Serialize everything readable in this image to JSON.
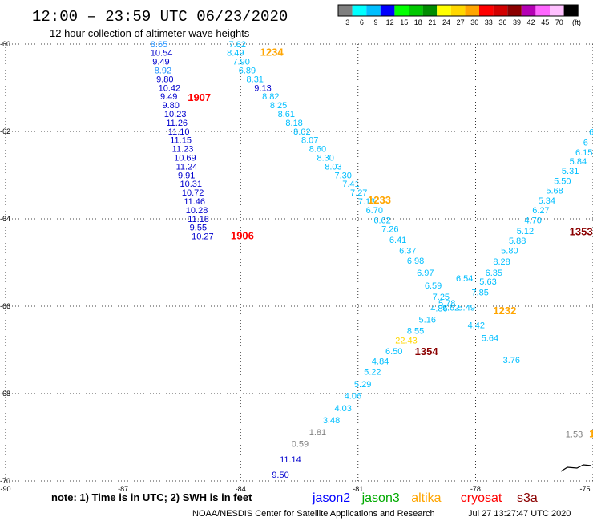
{
  "header": {
    "title": "12:00 – 23:59 UTC 06/23/2020",
    "subtitle": "12 hour collection of altimeter wave heights"
  },
  "legend": {
    "unit": "(ft)",
    "bins": [
      {
        "color": "#7f7f7f",
        "label": "3"
      },
      {
        "color": "#00ffff",
        "label": "6"
      },
      {
        "color": "#00bfff",
        "label": "9"
      },
      {
        "color": "#0000ff",
        "label": "12"
      },
      {
        "color": "#00ff00",
        "label": "15"
      },
      {
        "color": "#00c800",
        "label": "18"
      },
      {
        "color": "#008c00",
        "label": "21"
      },
      {
        "color": "#ffff00",
        "label": "24"
      },
      {
        "color": "#ffd700",
        "label": "27"
      },
      {
        "color": "#ffa500",
        "label": "30"
      },
      {
        "color": "#ff0000",
        "label": "33"
      },
      {
        "color": "#d20000",
        "label": "36"
      },
      {
        "color": "#8b0000",
        "label": "39"
      },
      {
        "color": "#b400b4",
        "label": "42"
      },
      {
        "color": "#ff66ff",
        "label": "45"
      },
      {
        "color": "#ffc0ff",
        "label": "70"
      },
      {
        "color": "#000000",
        "label": ""
      }
    ]
  },
  "axes": {
    "lat_ticks": [
      "-60",
      "-62",
      "-64",
      "-66",
      "-68",
      "-70"
    ],
    "lon_ticks": [
      "-90",
      "-87",
      "-84",
      "-81",
      "-78",
      "-75"
    ]
  },
  "chart_data": {
    "type": "scatter",
    "xlabel": "",
    "ylabel": "",
    "xlim": [
      -90,
      -75
    ],
    "ylim": [
      -70,
      -60
    ],
    "grid": true,
    "observations": [
      {
        "lon": -86.3,
        "lat": -60.07,
        "v": "8.65",
        "color": "#1e90ff"
      },
      {
        "lon": -86.3,
        "lat": -60.27,
        "v": "10.54",
        "color": "#0000cd"
      },
      {
        "lon": -86.25,
        "lat": -60.47,
        "v": "9.49",
        "color": "#0000cd"
      },
      {
        "lon": -86.2,
        "lat": -60.67,
        "v": "8.92",
        "color": "#1e90ff"
      },
      {
        "lon": -86.15,
        "lat": -60.87,
        "v": "9.80",
        "color": "#0000cd"
      },
      {
        "lon": -86.1,
        "lat": -61.07,
        "v": "10.42",
        "color": "#0000cd"
      },
      {
        "lon": -86.05,
        "lat": -61.27,
        "v": "9.49",
        "color": "#0000cd"
      },
      {
        "lon": -86.0,
        "lat": -61.47,
        "v": "9.80",
        "color": "#0000cd"
      },
      {
        "lon": -85.95,
        "lat": -61.67,
        "v": "10.23",
        "color": "#0000cd"
      },
      {
        "lon": -85.9,
        "lat": -61.87,
        "v": "11.26",
        "color": "#0000cd"
      },
      {
        "lon": -85.85,
        "lat": -62.07,
        "v": "11.10",
        "color": "#0000cd"
      },
      {
        "lon": -85.8,
        "lat": -62.27,
        "v": "11.15",
        "color": "#0000cd"
      },
      {
        "lon": -85.75,
        "lat": -62.47,
        "v": "11.23",
        "color": "#0000cd"
      },
      {
        "lon": -85.7,
        "lat": -62.67,
        "v": "10.69",
        "color": "#0000cd"
      },
      {
        "lon": -85.65,
        "lat": -62.87,
        "v": "11.24",
        "color": "#0000cd"
      },
      {
        "lon": -85.6,
        "lat": -63.07,
        "v": "9.91",
        "color": "#0000cd"
      },
      {
        "lon": -85.55,
        "lat": -63.27,
        "v": "10.31",
        "color": "#0000cd"
      },
      {
        "lon": -85.5,
        "lat": -63.47,
        "v": "10.72",
        "color": "#0000cd"
      },
      {
        "lon": -85.45,
        "lat": -63.67,
        "v": "11.46",
        "color": "#0000cd"
      },
      {
        "lon": -85.4,
        "lat": -63.87,
        "v": "10.28",
        "color": "#0000cd"
      },
      {
        "lon": -85.35,
        "lat": -64.07,
        "v": "11.18",
        "color": "#0000cd"
      },
      {
        "lon": -85.3,
        "lat": -64.27,
        "v": "9.55",
        "color": "#0000cd"
      },
      {
        "lon": -85.25,
        "lat": -64.47,
        "v": "10.27",
        "color": "#0000cd"
      },
      {
        "lon": -84.3,
        "lat": -60.07,
        "v": "7.82",
        "color": "#00bfff"
      },
      {
        "lon": -84.35,
        "lat": -60.27,
        "v": "8.49",
        "color": "#00bfff"
      },
      {
        "lon": -84.2,
        "lat": -60.47,
        "v": "7.90",
        "color": "#00bfff"
      },
      {
        "lon": -84.05,
        "lat": -60.67,
        "v": "6.89",
        "color": "#00bfff"
      },
      {
        "lon": -83.85,
        "lat": -60.87,
        "v": "8.31",
        "color": "#00bfff"
      },
      {
        "lon": -83.65,
        "lat": -61.07,
        "v": "9.13",
        "color": "#0000cd"
      },
      {
        "lon": -83.45,
        "lat": -61.27,
        "v": "8.82",
        "color": "#00bfff"
      },
      {
        "lon": -83.25,
        "lat": -61.47,
        "v": "8.25",
        "color": "#00bfff"
      },
      {
        "lon": -83.05,
        "lat": -61.67,
        "v": "8.61",
        "color": "#00bfff"
      },
      {
        "lon": -82.85,
        "lat": -61.87,
        "v": "8.18",
        "color": "#00bfff"
      },
      {
        "lon": -82.65,
        "lat": -62.07,
        "v": "8.02",
        "color": "#00bfff"
      },
      {
        "lon": -82.45,
        "lat": -62.27,
        "v": "8.07",
        "color": "#00bfff"
      },
      {
        "lon": -82.25,
        "lat": -62.47,
        "v": "8.60",
        "color": "#00bfff"
      },
      {
        "lon": -82.05,
        "lat": -62.67,
        "v": "8.30",
        "color": "#00bfff"
      },
      {
        "lon": -81.85,
        "lat": -62.87,
        "v": "8.03",
        "color": "#00bfff"
      },
      {
        "lon": -81.6,
        "lat": -63.07,
        "v": "7.30",
        "color": "#00bfff"
      },
      {
        "lon": -81.4,
        "lat": -63.27,
        "v": "7.41",
        "color": "#00bfff"
      },
      {
        "lon": -81.2,
        "lat": -63.47,
        "v": "7.27",
        "color": "#00bfff"
      },
      {
        "lon": -81.0,
        "lat": -63.67,
        "v": "7.13",
        "color": "#00bfff"
      },
      {
        "lon": -80.8,
        "lat": -63.87,
        "v": "6.70",
        "color": "#00bfff"
      },
      {
        "lon": -80.6,
        "lat": -64.1,
        "v": "6.62",
        "color": "#00bfff"
      },
      {
        "lon": -80.4,
        "lat": -64.3,
        "v": "7.26",
        "color": "#00bfff"
      },
      {
        "lon": -80.2,
        "lat": -64.55,
        "v": "6.41",
        "color": "#00bfff"
      },
      {
        "lon": -79.95,
        "lat": -64.8,
        "v": "6.37",
        "color": "#00bfff"
      },
      {
        "lon": -79.75,
        "lat": -65.03,
        "v": "6.98",
        "color": "#00bfff"
      },
      {
        "lon": -79.5,
        "lat": -65.3,
        "v": "6.97",
        "color": "#00bfff"
      },
      {
        "lon": -79.3,
        "lat": -65.6,
        "v": "6.59",
        "color": "#00bfff"
      },
      {
        "lon": -79.1,
        "lat": -65.85,
        "v": "7.25",
        "color": "#00bfff"
      },
      {
        "lon": -78.95,
        "lat": -66.0,
        "v": "5.78",
        "color": "#00bfff"
      },
      {
        "lon": -78.85,
        "lat": -66.1,
        "v": "5.62",
        "color": "#00bfff"
      },
      {
        "lon": -79.15,
        "lat": -66.12,
        "v": "4.86",
        "color": "#00bfff"
      },
      {
        "lon": -79.45,
        "lat": -66.38,
        "v": "5.16",
        "color": "#00bfff"
      },
      {
        "lon": -79.75,
        "lat": -66.63,
        "v": "8.55",
        "color": "#00bfff"
      },
      {
        "lon": -80.05,
        "lat": -66.85,
        "v": "22.43",
        "color": "#ffd700"
      },
      {
        "lon": -80.3,
        "lat": -67.1,
        "v": "6.50",
        "color": "#00bfff"
      },
      {
        "lon": -80.65,
        "lat": -67.33,
        "v": "4.84",
        "color": "#00bfff"
      },
      {
        "lon": -80.85,
        "lat": -67.57,
        "v": "5.22",
        "color": "#00bfff"
      },
      {
        "lon": -81.1,
        "lat": -67.85,
        "v": "5.29",
        "color": "#00bfff"
      },
      {
        "lon": -81.35,
        "lat": -68.12,
        "v": "4.06",
        "color": "#00bfff"
      },
      {
        "lon": -81.6,
        "lat": -68.4,
        "v": "4.03",
        "color": "#00bfff"
      },
      {
        "lon": -81.9,
        "lat": -68.68,
        "v": "3.48",
        "color": "#00bfff"
      },
      {
        "lon": -82.25,
        "lat": -68.95,
        "v": "1.81",
        "color": "#7f7f7f"
      },
      {
        "lon": -82.7,
        "lat": -69.22,
        "v": "0.59",
        "color": "#7f7f7f"
      },
      {
        "lon": -83.0,
        "lat": -69.58,
        "v": "11.14",
        "color": "#0000cd"
      },
      {
        "lon": -83.2,
        "lat": -69.93,
        "v": "9.50",
        "color": "#0000cd"
      },
      {
        "lon": -78.1,
        "lat": -65.75,
        "v": "7.85",
        "color": "#00bfff"
      },
      {
        "lon": -78.5,
        "lat": -65.43,
        "v": "6.54",
        "color": "#00bfff"
      },
      {
        "lon": -78.45,
        "lat": -66.1,
        "v": "5.49",
        "color": "#00bfff"
      },
      {
        "lon": -78.2,
        "lat": -66.5,
        "v": "4.42",
        "color": "#00bfff"
      },
      {
        "lon": -77.85,
        "lat": -66.8,
        "v": "5.64",
        "color": "#00bfff"
      },
      {
        "lon": -77.3,
        "lat": -67.3,
        "v": "3.76",
        "color": "#00bfff"
      },
      {
        "lon": -77.9,
        "lat": -65.5,
        "v": "5.63",
        "color": "#00bfff"
      },
      {
        "lon": -77.75,
        "lat": -65.3,
        "v": "6.35",
        "color": "#00bfff"
      },
      {
        "lon": -77.55,
        "lat": -65.05,
        "v": "8.28",
        "color": "#00bfff"
      },
      {
        "lon": -77.35,
        "lat": -64.8,
        "v": "5.80",
        "color": "#00bfff"
      },
      {
        "lon": -77.15,
        "lat": -64.57,
        "v": "5.88",
        "color": "#00bfff"
      },
      {
        "lon": -76.95,
        "lat": -64.35,
        "v": "5.12",
        "color": "#00bfff"
      },
      {
        "lon": -76.75,
        "lat": -64.1,
        "v": "4.70",
        "color": "#00bfff"
      },
      {
        "lon": -76.55,
        "lat": -63.87,
        "v": "6.27",
        "color": "#00bfff"
      },
      {
        "lon": -76.4,
        "lat": -63.65,
        "v": "5.34",
        "color": "#00bfff"
      },
      {
        "lon": -76.2,
        "lat": -63.42,
        "v": "5.68",
        "color": "#00bfff"
      },
      {
        "lon": -76.0,
        "lat": -63.2,
        "v": "5.50",
        "color": "#00bfff"
      },
      {
        "lon": -75.8,
        "lat": -62.97,
        "v": "5.31",
        "color": "#00bfff"
      },
      {
        "lon": -75.6,
        "lat": -62.75,
        "v": "5.84",
        "color": "#00bfff"
      },
      {
        "lon": -75.45,
        "lat": -62.55,
        "v": "6.15",
        "color": "#00bfff"
      },
      {
        "lon": -75.25,
        "lat": -62.32,
        "v": "6",
        "color": "#00bfff"
      },
      {
        "lon": -75.1,
        "lat": -62.08,
        "v": "6",
        "color": "#00bfff"
      },
      {
        "lon": -75.7,
        "lat": -69.0,
        "v": "1.53",
        "color": "#7f7f7f"
      }
    ],
    "pass_labels": [
      {
        "lon": -83.5,
        "lat": -60.27,
        "text": "1234",
        "color": "#ffa500"
      },
      {
        "lon": -85.35,
        "lat": -61.3,
        "text": "1907",
        "color": "#ff0000"
      },
      {
        "lon": -84.25,
        "lat": -64.47,
        "text": "1906",
        "color": "#ff0000"
      },
      {
        "lon": -80.75,
        "lat": -63.65,
        "text": "1233",
        "color": "#ffa500"
      },
      {
        "lon": -75.6,
        "lat": -64.38,
        "text": "1353",
        "color": "#8b0000"
      },
      {
        "lon": -77.55,
        "lat": -66.18,
        "text": "1232",
        "color": "#ffa500"
      },
      {
        "lon": -79.55,
        "lat": -67.12,
        "text": "1354",
        "color": "#8b0000"
      },
      {
        "lon": -75.1,
        "lat": -69.0,
        "text": "1",
        "color": "#ffa500"
      }
    ]
  },
  "footer": {
    "note": "note: 1) Time is in UTC; 2) SWH is in feet",
    "satellites": [
      {
        "name": "jason2",
        "color": "#0000ff"
      },
      {
        "name": "jason3",
        "color": "#00aa00"
      },
      {
        "name": "altika",
        "color": "#ffa500"
      },
      {
        "name": "cryosat",
        "color": "#ff0000"
      },
      {
        "name": "s3a",
        "color": "#8b0000"
      }
    ],
    "credit": "NOAA/NESDIS Center for Satellite Applications and Research",
    "timestamp": "Jul 27 13:27:47 UTC 2020"
  }
}
